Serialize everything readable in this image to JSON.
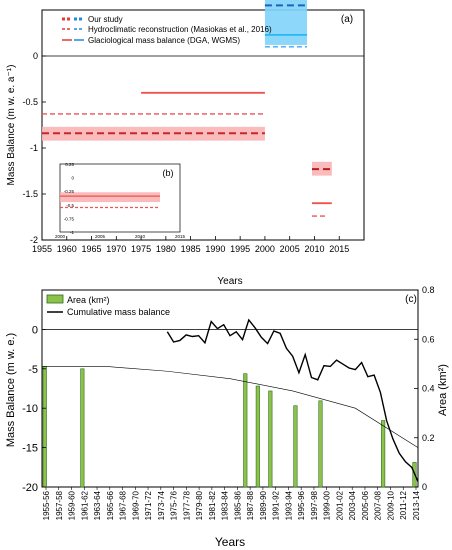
{
  "chart_data": [
    {
      "panel_label": "(a)",
      "type": "line",
      "title": "",
      "xlabel": "Years",
      "ylabel": "Mass Balance (m w. e. a⁻¹)",
      "xlim": [
        1955,
        2020
      ],
      "ylim": [
        -2,
        0.5
      ],
      "x_ticks": [
        1955,
        1960,
        1965,
        1970,
        1975,
        1980,
        1985,
        1990,
        1995,
        2000,
        2005,
        2010,
        2015
      ],
      "y_ticks": [
        0,
        -0.5,
        -1,
        -1.5,
        -2
      ],
      "y_tick_labels": [
        "0",
        "-0.5",
        "-1",
        "-1.5",
        "-2"
      ],
      "legend": {
        "position": "top-right",
        "entries": [
          {
            "label": "Our study",
            "color": "#e53935",
            "color2": "#1e88e5"
          },
          {
            "label": "Hydroclimatic reconstruction (Masiokas et al., 2016)",
            "color": "#e53935",
            "color2": "#1e88e5"
          },
          {
            "label": "Glaciological mass balance (DGA, WGMS)",
            "color": "#e53935",
            "color2": "#1e88e5"
          }
        ]
      },
      "series": [
        {
          "style": "dashed-dark",
          "color": "#c62828",
          "x_start": 1955,
          "x_end": 2000,
          "value": -0.84,
          "band": [
            -0.92,
            -0.77
          ]
        },
        {
          "style": "dashed",
          "color": "#ef5350",
          "x_start": 1955,
          "x_end": 2000,
          "value": -0.63
        },
        {
          "style": "solid",
          "color": "#ef5350",
          "x_start": 1975,
          "x_end": 2000,
          "value": -0.4
        },
        {
          "style": "dashed-dark",
          "color": "#1565c0",
          "x_start": 2000,
          "x_end": 2008.5,
          "value": 0.55,
          "band": [
            0.12,
            0.97
          ]
        },
        {
          "style": "dashed",
          "color": "#42a5f5",
          "x_start": 2000,
          "x_end": 2008.5,
          "value": 0.1
        },
        {
          "style": "solid",
          "color": "#29b6f6",
          "x_start": 2000,
          "x_end": 2008.5,
          "value": 0.23
        },
        {
          "style": "dashed-dark",
          "color": "#b71c1c",
          "x_start": 2009.5,
          "x_end": 2013.5,
          "value": -1.23,
          "band": [
            -1.3,
            -1.15
          ]
        },
        {
          "style": "solid",
          "color": "#ef5350",
          "x_start": 2009.5,
          "x_end": 2013.5,
          "value": -1.6
        },
        {
          "style": "dashed",
          "color": "#ef5350",
          "x_start": 2009.5,
          "x_end": 2012.5,
          "value": -1.74
        }
      ],
      "inset": {
        "label": "(b)",
        "xlim": [
          2000,
          2015
        ],
        "ylim": [
          -1,
          0.25
        ],
        "x_ticks": [
          2000,
          2005,
          2010,
          2015
        ],
        "y_ticks": [
          0.25,
          0,
          -0.25,
          -0.5,
          -0.75,
          -1
        ],
        "y_tick_labels": [
          "0.25",
          "0",
          "-0.25",
          "-0.5",
          "-0.75",
          "-1"
        ],
        "series": [
          {
            "style": "solid",
            "color": "#ef5350",
            "x_start": 2000,
            "x_end": 2012.5,
            "value": -0.34,
            "band": [
              -0.45,
              -0.27
            ]
          },
          {
            "style": "dashed",
            "color": "#ef5350",
            "x_start": 2000,
            "x_end": 2012.5,
            "value": -0.55
          }
        ]
      }
    },
    {
      "panel_label": "(c)",
      "type": "bar+line",
      "title": "",
      "xlabel": "Years",
      "ylabel": "Mass Balance (m w. e.)",
      "ylabel_right": "Area (km²)",
      "ylim": [
        -20,
        5
      ],
      "ylim_right": [
        0,
        0.8
      ],
      "y_ticks": [
        0,
        -5,
        -10,
        -15,
        -20
      ],
      "y_tick_labels": [
        "0",
        "-5",
        "-10",
        "-15",
        "-20"
      ],
      "y_ticks_right": [
        0,
        0.2,
        0.4,
        0.6,
        0.8
      ],
      "y_tick_labels_right": [
        "0",
        "0.2",
        "0.4",
        "0.6",
        "0.8"
      ],
      "legend": {
        "position": "top-left",
        "entries": [
          {
            "label": "Area (km²)",
            "kind": "bar",
            "color": "#8bc34a"
          },
          {
            "label": "Cumulative mass balance",
            "kind": "line",
            "color": "#000000"
          }
        ]
      },
      "categories": [
        "1955-56",
        "1957-58",
        "1959-60",
        "1961-62",
        "1963-64",
        "1965-66",
        "1967-68",
        "1969-70",
        "1971-72",
        "1973-74",
        "1975-76",
        "1977-78",
        "1979-80",
        "1981-82",
        "1983-84",
        "1985-86",
        "1987-88",
        "1989-90",
        "1991-92",
        "1993-94",
        "1995-96",
        "1997-98",
        "1999-00",
        "2001-02",
        "2003-04",
        "2005-06",
        "2007-08",
        "2009-10",
        "2011-12",
        "2013-14"
      ],
      "x_year_range": [
        1955,
        2015
      ],
      "area_bars": [
        {
          "year": 1955,
          "area": 0.49
        },
        {
          "year": 1961,
          "area": 0.48
        },
        {
          "year": 1987,
          "area": 0.46
        },
        {
          "year": 1989,
          "area": 0.41
        },
        {
          "year": 1991,
          "area": 0.39
        },
        {
          "year": 1995,
          "area": 0.33
        },
        {
          "year": 1999,
          "area": 0.35
        },
        {
          "year": 2009,
          "area": 0.27
        },
        {
          "year": 2014,
          "area": 0.1
        }
      ],
      "area_trend": [
        {
          "year": 1955,
          "area": 0.49
        },
        {
          "year": 1965,
          "area": 0.49
        },
        {
          "year": 1975,
          "area": 0.47
        },
        {
          "year": 1985,
          "area": 0.44
        },
        {
          "year": 1995,
          "area": 0.39
        },
        {
          "year": 2005,
          "area": 0.32
        },
        {
          "year": 2015,
          "area": 0.16
        }
      ],
      "cumulative_mass_balance": {
        "x": [
          1975,
          1976,
          1977,
          1978,
          1979,
          1980,
          1981,
          1982,
          1983,
          1984,
          1985,
          1986,
          1987,
          1988,
          1989,
          1990,
          1991,
          1992,
          1993,
          1994,
          1995,
          1996,
          1997,
          1998,
          1999,
          2000,
          2001,
          2002,
          2003,
          2004,
          2005,
          2006,
          2007,
          2008,
          2009,
          2010,
          2011,
          2012,
          2013,
          2014,
          2015
        ],
        "y": [
          -0.3,
          -1.6,
          -1.4,
          -0.7,
          -0.9,
          -0.8,
          -1.7,
          1.0,
          0.1,
          0.6,
          -0.8,
          -0.3,
          -1.3,
          1.2,
          0.2,
          -1.0,
          -1.8,
          -0.2,
          -0.5,
          -2.4,
          -3.4,
          -5.5,
          -3.2,
          -6.1,
          -6.4,
          -4.6,
          -4.7,
          -3.9,
          -4.4,
          -4.9,
          -5.1,
          -4.2,
          -6.0,
          -5.8,
          -8.0,
          -11.6,
          -13.9,
          -15.7,
          -16.8,
          -17.5,
          -19.3
        ]
      }
    }
  ]
}
